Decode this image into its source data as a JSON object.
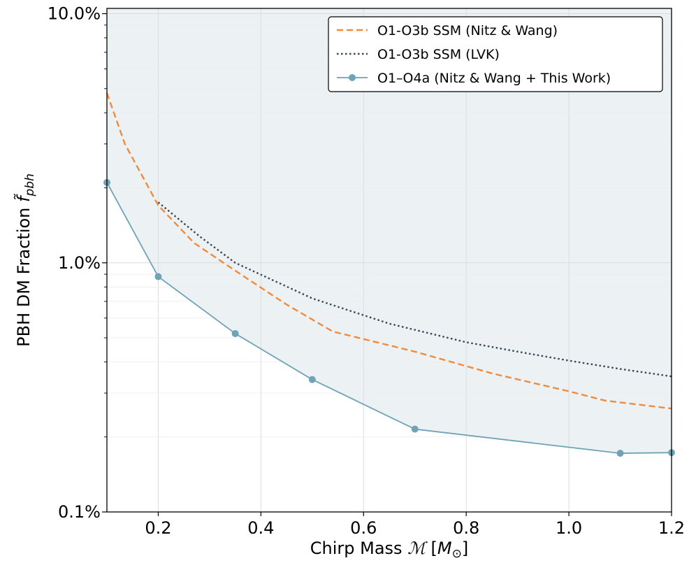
{
  "chart_data": {
    "type": "line",
    "xlabel": "Chirp Mass",
    "xlabel_symbol": "ℳ",
    "xlabel_unit_open": "[",
    "xlabel_unit": "M",
    "xlabel_unit_sub": "⊙",
    "xlabel_unit_close": "]",
    "ylabel": "PBH DM Fraction",
    "ylabel_symbol": "f̃",
    "ylabel_symbol_sub": "pbh",
    "xlim": [
      0.1,
      1.2
    ],
    "ylim": [
      0.1,
      10.5
    ],
    "yscale": "log",
    "grid": true,
    "legend_position": "top-right",
    "x_ticks": [
      0.2,
      0.4,
      0.6,
      0.8,
      1.0,
      1.2
    ],
    "x_tick_labels": [
      "0.2",
      "0.4",
      "0.6",
      "0.8",
      "1.0",
      "1.2"
    ],
    "y_ticks": [
      0.1,
      1.0,
      10.0
    ],
    "y_tick_labels": [
      "0.1%",
      "1.0%",
      "10.0%"
    ],
    "y_minor_ticks": [
      0.2,
      0.3,
      0.4,
      0.5,
      0.6,
      0.7,
      0.8,
      0.9,
      2,
      3,
      4,
      5,
      6,
      7,
      8,
      9
    ],
    "fill_color": "#ecf2f4",
    "series": [
      {
        "name": "O1-O3b SSM (Nitz & Wang)",
        "style": "dashed",
        "color": "#f28a3c",
        "x": [
          0.1,
          0.135,
          0.2,
          0.27,
          0.35,
          0.45,
          0.54,
          0.7,
          0.85,
          1.0,
          1.07,
          1.2
        ],
        "y": [
          4.8,
          3.0,
          1.7,
          1.2,
          0.93,
          0.68,
          0.53,
          0.44,
          0.36,
          0.305,
          0.28,
          0.26
        ]
      },
      {
        "name": "O1-O3b SSM (LVK)",
        "style": "dotted",
        "color": "#3a4655",
        "x": [
          0.2,
          0.28,
          0.35,
          0.5,
          0.65,
          0.8,
          0.9,
          1.0,
          1.1,
          1.2
        ],
        "y": [
          1.75,
          1.28,
          1.0,
          0.72,
          0.57,
          0.48,
          0.44,
          0.405,
          0.375,
          0.35
        ]
      },
      {
        "name": "O1–O4a (Nitz & Wang + This Work)",
        "style": "solid-marker",
        "color": "#6fa3b5",
        "x": [
          0.1,
          0.2,
          0.35,
          0.5,
          0.7,
          1.1,
          1.2
        ],
        "y": [
          2.1,
          0.88,
          0.52,
          0.34,
          0.215,
          0.172,
          0.173
        ]
      }
    ]
  }
}
